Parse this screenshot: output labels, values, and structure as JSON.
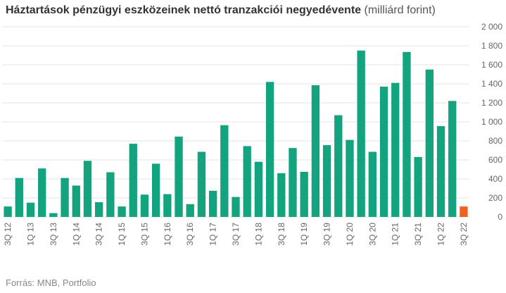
{
  "chart_data": {
    "type": "bar",
    "title": "Háztartások pénzügyi eszközeinek nettó tranzakciói negyedévente",
    "title_unit": "(milliárd forint)",
    "source": "Forrás: MNB, Portfolio",
    "ylim": [
      0,
      2000
    ],
    "yticks": [
      "0",
      "200",
      "400",
      "600",
      "800",
      "1 000",
      "1 200",
      "1 400",
      "1 600",
      "1 800",
      "2 000"
    ],
    "ytick_values": [
      0,
      200,
      400,
      600,
      800,
      1000,
      1200,
      1400,
      1600,
      1800,
      2000
    ],
    "grid": true,
    "y_axis_side": "right",
    "categories": [
      "3Q 12",
      "4Q 12",
      "1Q 13",
      "2Q 13",
      "3Q 13",
      "4Q 13",
      "1Q 14",
      "2Q 14",
      "3Q 14",
      "4Q 14",
      "1Q 15",
      "2Q 15",
      "3Q 15",
      "4Q 15",
      "1Q 16",
      "2Q 16",
      "3Q 16",
      "4Q 16",
      "1Q 17",
      "2Q 17",
      "3Q 17",
      "4Q 17",
      "1Q 18",
      "2Q 18",
      "3Q 18",
      "4Q 18",
      "1Q 19",
      "2Q 19",
      "3Q 19",
      "4Q 19",
      "1Q 20",
      "2Q 20",
      "3Q 20",
      "4Q 20",
      "1Q 21",
      "2Q 21",
      "3Q 21",
      "4Q 21",
      "1Q 22",
      "2Q 22",
      "3Q 22"
    ],
    "x_labels_shown": [
      "3Q 12",
      "1Q 13",
      "3Q 13",
      "1Q 14",
      "3Q 14",
      "1Q 15",
      "3Q 15",
      "1Q 16",
      "3Q 16",
      "1Q 17",
      "3Q 17",
      "1Q 18",
      "3Q 18",
      "1Q 19",
      "3Q 19",
      "1Q 20",
      "3Q 20",
      "1Q 21",
      "3Q 21",
      "1Q 22",
      "3Q 22"
    ],
    "values": [
      110,
      410,
      150,
      510,
      40,
      410,
      330,
      590,
      155,
      470,
      110,
      770,
      235,
      560,
      240,
      845,
      135,
      685,
      275,
      965,
      210,
      745,
      580,
      1420,
      460,
      725,
      475,
      1385,
      755,
      1070,
      810,
      1750,
      685,
      1370,
      1410,
      1735,
      630,
      1550,
      955,
      1220,
      110
    ],
    "colors": {
      "default": "#14A37F",
      "highlight": "#F0601F"
    },
    "highlight_index": 40
  }
}
